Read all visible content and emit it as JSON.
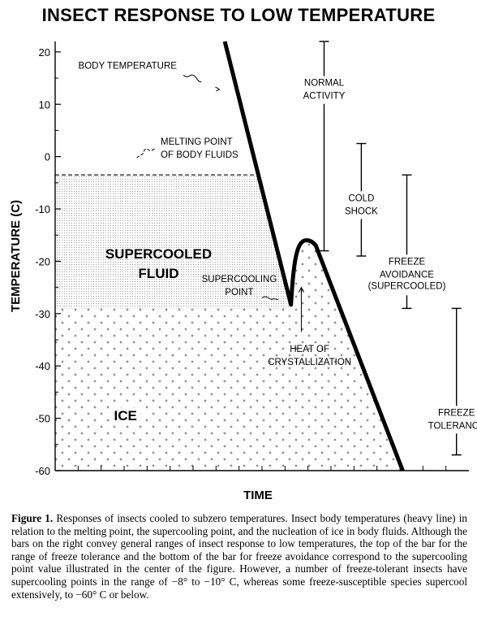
{
  "title": "INSECT RESPONSE TO LOW TEMPERATURE",
  "caption": {
    "lead": "Figure 1.",
    "text": "Responses of insects cooled to subzero temperatures. Insect body temperatures (heavy line) in relation to the melting point, the supercooling point, and the nucleation of ice in body fluids. Although the bars on the right convey general ranges of insect response to low temperatures, the top of the bar for the range of freeze tolerance and the bottom of the bar for freeze avoidance correspond to the supercooling point value illustrated in the center of the figure. However, a number of freeze-tolerant insects have supercooling points in the range of −8° to −10° C, whereas some freeze-susceptible species supercool extensively, to −60° C or below."
  },
  "chart_data": {
    "type": "line",
    "title": "INSECT RESPONSE TO LOW TEMPERATURE",
    "xlabel": "TIME",
    "ylabel": "TEMPERATURE (C)",
    "ylim": [
      -60,
      22
    ],
    "yticks": [
      20,
      10,
      0,
      -10,
      -20,
      -30,
      -40,
      -50,
      -60
    ],
    "ytick_labels": [
      "20",
      "10",
      "0",
      "-10",
      "-20",
      "-30",
      "-40",
      "-50",
      "-60"
    ],
    "x_range": [
      0,
      100
    ],
    "series": [
      {
        "name": "BODY TEMPERATURE",
        "points": [
          [
            41,
            22
          ],
          [
            57,
            -28.3
          ],
          [
            59,
            -17.5
          ],
          [
            61,
            -16
          ],
          [
            63,
            -17
          ],
          [
            84,
            -60
          ]
        ]
      }
    ],
    "melting_point": -3.5,
    "supercooling_point": -28.3,
    "ice_level": -29,
    "regions": [
      {
        "label": "SUPERCOOLED FLUID",
        "lines": [
          "SUPERCOOLED",
          "FLUID"
        ]
      },
      {
        "label": "ICE",
        "lines": [
          "ICE"
        ]
      }
    ],
    "annotations": {
      "body_temperature": "BODY TEMPERATURE",
      "melting_point": [
        "MELTING POINT",
        "OF BODY FLUIDS"
      ],
      "supercooling_point": [
        "SUPERCOOLING",
        "POINT"
      ],
      "heat_of_crystallization": [
        "HEAT OF",
        "CRYSTALLIZATION"
      ]
    },
    "response_ranges": [
      {
        "lines": [
          "NORMAL",
          "ACTIVITY"
        ],
        "low": -18,
        "high": 22,
        "x": 65
      },
      {
        "lines": [
          "COLD",
          "SHOCK"
        ],
        "low": -19,
        "high": 2.5,
        "x": 74
      },
      {
        "lines": [
          "FREEZE",
          "AVOIDANCE"
        ],
        "sub": "(SUPERCOOLED)",
        "low": -29,
        "high": -3.5,
        "x": 85
      },
      {
        "lines": [
          "FREEZE",
          "TOLERANCE"
        ],
        "low": -57,
        "high": -29,
        "x": 97
      }
    ],
    "grid": false,
    "x_minor_ticks": true
  }
}
